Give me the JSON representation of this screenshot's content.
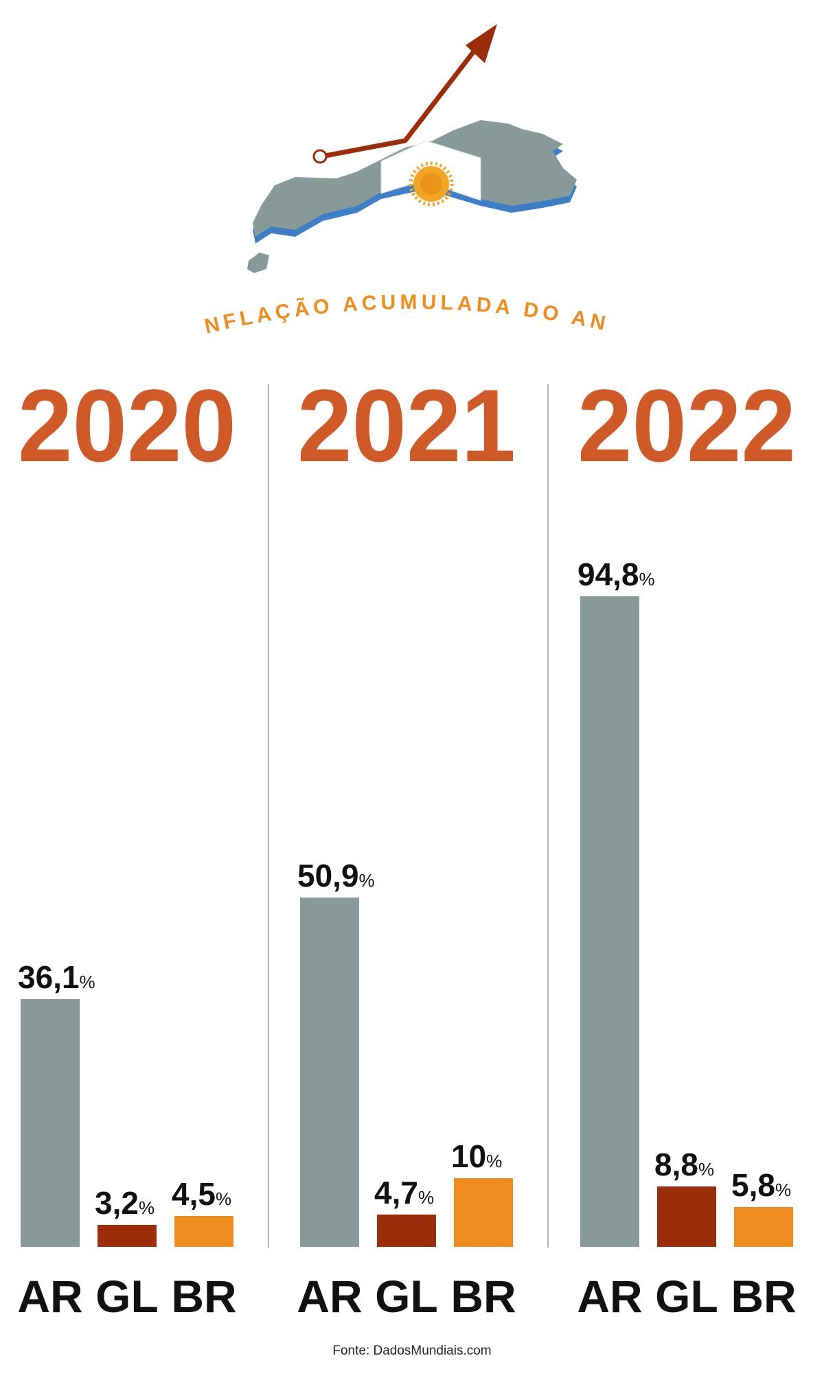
{
  "header": {
    "subtitle": "INFLAÇÃO ACUMULADA DO ANO"
  },
  "colors": {
    "year": "#cf5a27",
    "AR": "#879a98",
    "GL": "#9b2d0a",
    "BR": "#ee8c1e",
    "subtitle": "#ee8c1e",
    "text": "#111111",
    "divider": "#999999",
    "map_land": "#879a98",
    "map_edge": "#3d7fc7",
    "arrow": "#9b2d0a"
  },
  "chart_data": {
    "type": "bar",
    "title": "INFLAÇÃO ACUMULADA DO ANO",
    "unit": "%",
    "categories": [
      "AR",
      "GL",
      "BR"
    ],
    "groups": [
      {
        "year": "2020",
        "values": [
          36.1,
          3.2,
          4.5
        ],
        "labels": [
          "36,1",
          "3,2",
          "4,5"
        ]
      },
      {
        "year": "2021",
        "values": [
          50.9,
          4.7,
          10
        ],
        "labels": [
          "50,9",
          "4,7",
          "10"
        ]
      },
      {
        "year": "2022",
        "values": [
          94.8,
          8.8,
          5.8
        ],
        "labels": [
          "94,8",
          "8,8",
          "5,8"
        ]
      }
    ],
    "ylim": [
      0,
      100
    ],
    "grid": false,
    "legend": "none"
  },
  "footer": {
    "source": "Fonte: DadosMundiais.com"
  }
}
